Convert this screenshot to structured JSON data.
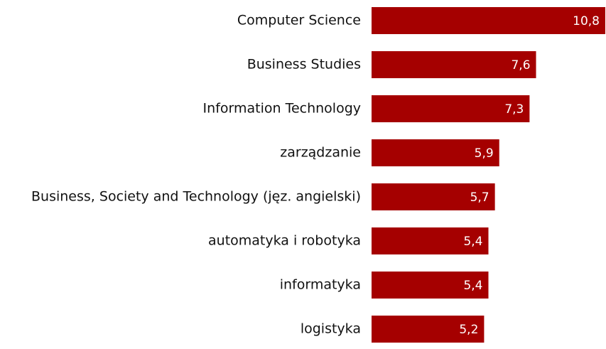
{
  "chart_data": {
    "type": "bar",
    "orientation": "horizontal",
    "categories": [
      "Computer Science",
      "Business Studies",
      "Information Technology",
      "zarządzanie",
      "Business, Society and Technology (jęz. angielski)",
      "automatyka i robotyka",
      "informatyka",
      "logistyka"
    ],
    "values": [
      10.8,
      7.6,
      7.3,
      5.9,
      5.7,
      5.4,
      5.4,
      5.2
    ],
    "value_labels": [
      "10,8",
      "7,6",
      "7,3",
      "5,9",
      "5,7",
      "5,4",
      "5,4",
      "5,2"
    ],
    "color": "#a50000"
  }
}
